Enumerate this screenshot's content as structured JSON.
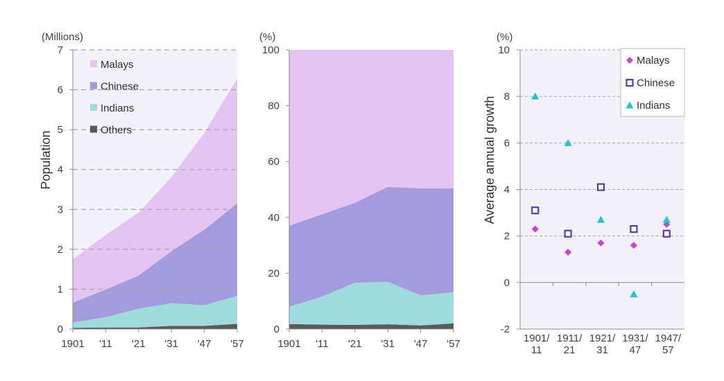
{
  "colors": {
    "malays": "#e4c4f2",
    "chinese": "#a39bdd",
    "indians": "#9edcdc",
    "others": "#5a5a5a",
    "plot_bg": "#f3f1fa",
    "grid": "#a8a8a8",
    "axis": "#8c8c8c",
    "scatter_malays": "#d23fd8",
    "scatter_chinese": "#4b3fc0",
    "scatter_indians": "#1bc6cc"
  },
  "chart_data": [
    {
      "type": "area",
      "stacked": true,
      "unit_label": "(Millions)",
      "ylabel": "Population",
      "ylim": [
        0,
        7
      ],
      "y_ticks": [
        "0",
        "1",
        "2",
        "3",
        "4",
        "5",
        "6",
        "7"
      ],
      "x": [
        1901,
        1911,
        1921,
        1931,
        1947,
        1957
      ],
      "x_tick_labels": [
        "1901",
        "'11",
        "'21",
        "'31",
        "'47",
        "'57"
      ],
      "grid": "horizontal dashed",
      "legend_position": "top-left",
      "series": [
        {
          "name": "Others",
          "key": "others",
          "values": [
            0.03,
            0.04,
            0.04,
            0.08,
            0.08,
            0.13
          ]
        },
        {
          "name": "Indians",
          "key": "indians",
          "values": [
            0.13,
            0.26,
            0.47,
            0.57,
            0.52,
            0.7
          ]
        },
        {
          "name": "Chinese",
          "key": "chinese",
          "values": [
            0.5,
            0.69,
            0.83,
            1.3,
            1.89,
            2.32
          ]
        },
        {
          "name": "Malays",
          "key": "malays",
          "values": [
            1.09,
            1.37,
            1.58,
            1.86,
            2.43,
            3.13
          ]
        }
      ],
      "legend_order": [
        "Malays",
        "Chinese",
        "Indians",
        "Others"
      ]
    },
    {
      "type": "area",
      "stacked": true,
      "unit_label": "(%)",
      "ylim": [
        0,
        100
      ],
      "y_ticks": [
        "0",
        "20",
        "40",
        "60",
        "80",
        "100"
      ],
      "x": [
        1901,
        1911,
        1921,
        1931,
        1947,
        1957
      ],
      "x_tick_labels": [
        "1901",
        "'11",
        "'21",
        "'31",
        "'47",
        "'57"
      ],
      "series": [
        {
          "name": "Others",
          "key": "others",
          "values": [
            1.8,
            1.6,
            1.5,
            1.7,
            1.3,
            2.0
          ]
        },
        {
          "name": "Indians",
          "key": "indians",
          "values": [
            6.2,
            10.0,
            15.1,
            15.2,
            10.8,
            11.2
          ]
        },
        {
          "name": "Chinese",
          "key": "chinese",
          "values": [
            29.0,
            29.5,
            28.6,
            34.0,
            38.3,
            37.2
          ]
        },
        {
          "name": "Malays",
          "key": "malays",
          "values": [
            63.0,
            58.9,
            54.8,
            49.1,
            49.6,
            49.6
          ]
        }
      ]
    },
    {
      "type": "scatter",
      "unit_label": "(%)",
      "ylabel": "Average annual growth",
      "ylim": [
        -2,
        10
      ],
      "y_ticks": [
        "-2",
        "0",
        "2",
        "4",
        "6",
        "8",
        "10"
      ],
      "categories": [
        [
          "1901/",
          "11"
        ],
        [
          "1911/",
          "21"
        ],
        [
          "1921/",
          "31"
        ],
        [
          "1931/",
          "47"
        ],
        [
          "1947/",
          "57"
        ]
      ],
      "grid": "horizontal dashed",
      "legend_position": "top-right",
      "series": [
        {
          "name": "Malays",
          "key": "scatter_malays",
          "marker": "diamond",
          "values": [
            2.3,
            1.3,
            1.7,
            1.6,
            2.5
          ]
        },
        {
          "name": "Chinese",
          "key": "scatter_chinese",
          "marker": "square",
          "values": [
            3.1,
            2.1,
            4.1,
            2.3,
            2.1
          ]
        },
        {
          "name": "Indians",
          "key": "scatter_indians",
          "marker": "triangle",
          "values": [
            8.0,
            6.0,
            2.7,
            -0.5,
            2.7
          ]
        }
      ]
    }
  ]
}
